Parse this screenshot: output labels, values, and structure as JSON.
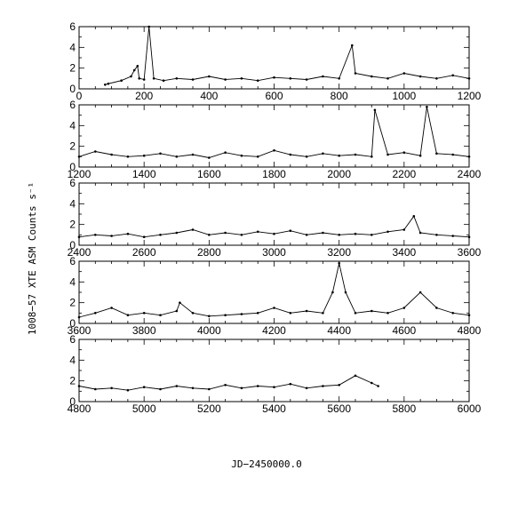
{
  "chart_data": {
    "type": "line",
    "xlabel": "JD−2450000.0",
    "ylabel": "1008−57 XTE ASM Counts s⁻¹",
    "grid": false,
    "panels": [
      {
        "xlim": [
          0,
          1200
        ],
        "ylim": [
          0,
          6
        ],
        "xticks": [
          "0",
          "200",
          "400",
          "600",
          "800",
          "1000",
          "1200"
        ],
        "yticks": [
          "0",
          "2",
          "4",
          "6"
        ],
        "series": [
          {
            "x": [
              80,
              90,
              130,
              160,
              170,
              180,
              185,
              200,
              215,
              230,
              260,
              300,
              350,
              400,
              450,
              500,
              550,
              600,
              650,
              700,
              750,
              800,
              840,
              850,
              900,
              950,
              1000,
              1050,
              1100,
              1150,
              1200
            ],
            "y": [
              0.4,
              0.5,
              0.8,
              1.2,
              1.8,
              2.2,
              1.0,
              0.9,
              6.0,
              1.0,
              0.8,
              1.0,
              0.9,
              1.2,
              0.9,
              1.0,
              0.8,
              1.1,
              1.0,
              0.9,
              1.2,
              1.0,
              4.2,
              1.5,
              1.2,
              1.0,
              1.5,
              1.2,
              1.0,
              1.3,
              1.0
            ]
          }
        ]
      },
      {
        "xlim": [
          1200,
          2400
        ],
        "ylim": [
          0,
          6
        ],
        "xticks": [
          "1200",
          "1400",
          "1600",
          "1800",
          "2000",
          "2200",
          "2400"
        ],
        "yticks": [
          "0",
          "2",
          "4",
          "6"
        ],
        "series": [
          {
            "x": [
              1200,
              1250,
              1300,
              1350,
              1400,
              1450,
              1500,
              1550,
              1600,
              1650,
              1700,
              1750,
              1800,
              1850,
              1900,
              1950,
              2000,
              2050,
              2100,
              2110,
              2150,
              2200,
              2250,
              2270,
              2300,
              2350,
              2400
            ],
            "y": [
              1.0,
              1.5,
              1.2,
              1.0,
              1.1,
              1.3,
              1.0,
              1.2,
              0.9,
              1.4,
              1.1,
              1.0,
              1.6,
              1.2,
              1.0,
              1.3,
              1.1,
              1.2,
              1.0,
              5.5,
              1.2,
              1.4,
              1.1,
              5.8,
              1.3,
              1.2,
              1.0
            ]
          }
        ]
      },
      {
        "xlim": [
          2400,
          3600
        ],
        "ylim": [
          0,
          6
        ],
        "xticks": [
          "2400",
          "2600",
          "2800",
          "3000",
          "3200",
          "3400",
          "3600"
        ],
        "yticks": [
          "0",
          "2",
          "4",
          "6"
        ],
        "series": [
          {
            "x": [
              2400,
              2450,
              2500,
              2550,
              2600,
              2650,
              2700,
              2750,
              2800,
              2850,
              2900,
              2950,
              3000,
              3050,
              3100,
              3150,
              3200,
              3250,
              3300,
              3350,
              3400,
              3430,
              3450,
              3500,
              3550,
              3600
            ],
            "y": [
              0.8,
              1.0,
              0.9,
              1.1,
              0.8,
              1.0,
              1.2,
              1.5,
              1.0,
              1.2,
              1.0,
              1.3,
              1.1,
              1.4,
              1.0,
              1.2,
              1.0,
              1.1,
              1.0,
              1.3,
              1.5,
              2.8,
              1.2,
              1.0,
              0.9,
              0.8
            ]
          }
        ]
      },
      {
        "xlim": [
          3600,
          4800
        ],
        "ylim": [
          0,
          6
        ],
        "xticks": [
          "3600",
          "3800",
          "4000",
          "4200",
          "4400",
          "4600",
          "4800"
        ],
        "yticks": [
          "0",
          "2",
          "4",
          "6"
        ],
        "series": [
          {
            "x": [
              3600,
              3650,
              3700,
              3750,
              3800,
              3850,
              3900,
              3910,
              3950,
              4000,
              4050,
              4100,
              4150,
              4200,
              4250,
              4300,
              4350,
              4380,
              4400,
              4420,
              4450,
              4500,
              4550,
              4600,
              4650,
              4700,
              4750,
              4800
            ],
            "y": [
              0.6,
              1.0,
              1.5,
              0.8,
              1.0,
              0.8,
              1.2,
              2.0,
              1.0,
              0.7,
              0.8,
              0.9,
              1.0,
              1.5,
              1.0,
              1.2,
              1.0,
              3.0,
              5.8,
              3.0,
              1.0,
              1.2,
              1.0,
              1.5,
              3.0,
              1.5,
              1.0,
              0.8
            ]
          }
        ]
      },
      {
        "xlim": [
          4800,
          6000
        ],
        "ylim": [
          0,
          6
        ],
        "xticks": [
          "4800",
          "5000",
          "5200",
          "5400",
          "5600",
          "5800",
          "6000"
        ],
        "yticks": [
          "0",
          "2",
          "4",
          "6"
        ],
        "series": [
          {
            "x": [
              4800,
              4850,
              4900,
              4950,
              5000,
              5050,
              5100,
              5150,
              5200,
              5250,
              5300,
              5350,
              5400,
              5450,
              5500,
              5550,
              5600,
              5650,
              5700,
              5720
            ],
            "y": [
              1.5,
              1.2,
              1.3,
              1.1,
              1.4,
              1.2,
              1.5,
              1.3,
              1.2,
              1.6,
              1.3,
              1.5,
              1.4,
              1.7,
              1.3,
              1.5,
              1.6,
              2.5,
              1.8,
              1.5
            ]
          }
        ]
      }
    ]
  }
}
